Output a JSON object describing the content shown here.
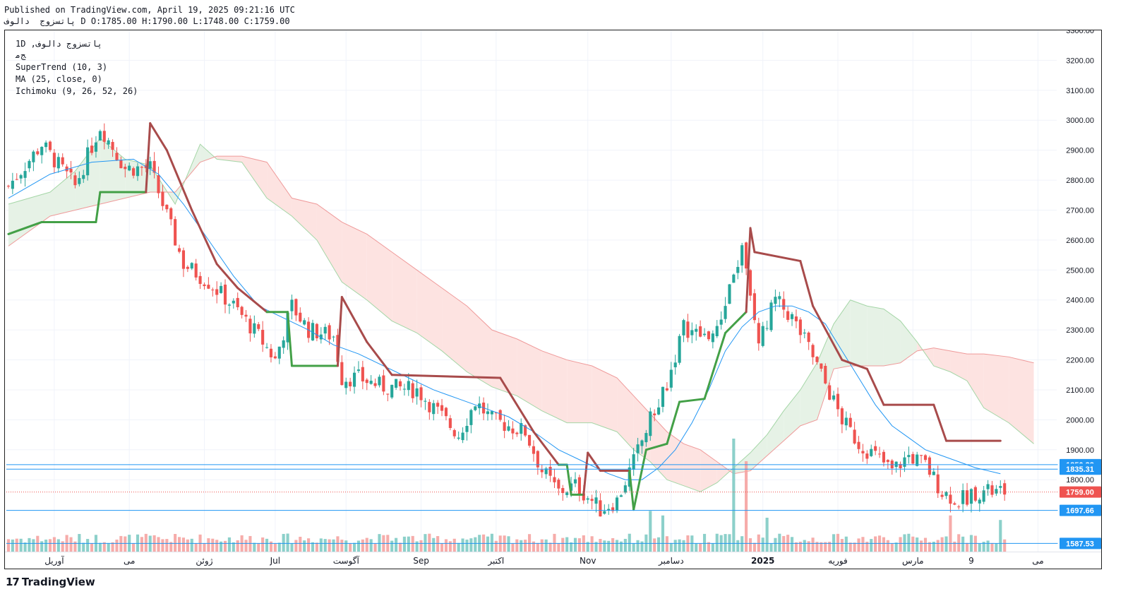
{
  "header": {
    "published": "Published on TradingView.com, April 19, 2025 09:21:16 UTC",
    "ohlc": "پاتسزوج  دالوف D O:1785.00 H:1790.00 L:1748.00 C:1759.00"
  },
  "legend": {
    "symbol": "1D ,پاتسزوج دالوف",
    "sub": "ﺞﻣ",
    "supertrend": "SuperTrend (10, 3)",
    "ma": "MA (25, close, 0)",
    "ichimoku": "Ichimoku (9, 26, 52, 26)"
  },
  "footer": {
    "brand": "TradingView",
    "logo_icon": "tv-logo-icon"
  },
  "colors": {
    "up": "#26a69a",
    "down": "#ef5350",
    "supertrend_up": "#43a047",
    "supertrend_down": "#a84b4b",
    "ma": "#2196f3",
    "cloud_bull": "#e6f2e6",
    "cloud_bear": "#fde3e1",
    "hline": "#2196f3",
    "last_price": "#ef5350"
  },
  "chart_data": {
    "type": "candlestick",
    "interval": "1D",
    "ylim": [
      1560,
      3300
    ],
    "y_ticks": [
      3300,
      3200,
      3100,
      3000,
      2900,
      2800,
      2700,
      2600,
      2500,
      2400,
      2300,
      2200,
      2100,
      2000,
      1900,
      1800
    ],
    "y_tick_labels": [
      "3300.00",
      "3200.00",
      "3100.00",
      "3000.00",
      "2900.00",
      "2800.00",
      "2700.00",
      "2600.00",
      "2500.00",
      "2400.00",
      "2300.00",
      "2200.00",
      "2100.00",
      "2000.00",
      "1900.00",
      "1800.00"
    ],
    "x_labels": [
      {
        "label": "آوریل",
        "t": 11
      },
      {
        "label": "می",
        "t": 29
      },
      {
        "label": "ژوئن",
        "t": 47
      },
      {
        "label": "Jul",
        "t": 64
      },
      {
        "label": "آگوست",
        "t": 81
      },
      {
        "label": "Sep",
        "t": 99
      },
      {
        "label": "اکتبر",
        "t": 117
      },
      {
        "label": "Nov",
        "t": 139
      },
      {
        "label": "دسامبر",
        "t": 159
      },
      {
        "label": "2025",
        "t": 181
      },
      {
        "label": "فوریه",
        "t": 199
      },
      {
        "label": "مارس",
        "t": 217
      },
      {
        "label": "9",
        "t": 231
      },
      {
        "label": "می",
        "t": 247
      }
    ],
    "anchors": [
      [
        0,
        2780
      ],
      [
        8,
        2920
      ],
      [
        16,
        2780
      ],
      [
        22,
        2980
      ],
      [
        28,
        2840
      ],
      [
        34,
        2840
      ],
      [
        38,
        2680
      ],
      [
        42,
        2520
      ],
      [
        48,
        2460
      ],
      [
        54,
        2380
      ],
      [
        60,
        2280
      ],
      [
        64,
        2200
      ],
      [
        68,
        2380
      ],
      [
        72,
        2300
      ],
      [
        78,
        2280
      ],
      [
        80,
        2140
      ],
      [
        84,
        2140
      ],
      [
        90,
        2110
      ],
      [
        98,
        2100
      ],
      [
        104,
        2010
      ],
      [
        108,
        1950
      ],
      [
        112,
        2060
      ],
      [
        116,
        2000
      ],
      [
        124,
        1960
      ],
      [
        128,
        1830
      ],
      [
        132,
        1760
      ],
      [
        136,
        1780
      ],
      [
        140,
        1730
      ],
      [
        142,
        1700
      ],
      [
        146,
        1730
      ],
      [
        150,
        1860
      ],
      [
        154,
        2000
      ],
      [
        158,
        2120
      ],
      [
        162,
        2310
      ],
      [
        166,
        2280
      ],
      [
        170,
        2290
      ],
      [
        174,
        2500
      ],
      [
        176,
        2560
      ],
      [
        178,
        2400
      ],
      [
        180,
        2260
      ],
      [
        184,
        2400
      ],
      [
        188,
        2340
      ],
      [
        192,
        2240
      ],
      [
        196,
        2120
      ],
      [
        200,
        2000
      ],
      [
        204,
        1920
      ],
      [
        208,
        1880
      ],
      [
        212,
        1830
      ],
      [
        216,
        1880
      ],
      [
        220,
        1850
      ],
      [
        224,
        1760
      ],
      [
        228,
        1730
      ],
      [
        232,
        1760
      ],
      [
        236,
        1759
      ]
    ],
    "supertrend": [
      [
        0,
        2620,
        "up"
      ],
      [
        8,
        2660,
        "up"
      ],
      [
        21,
        2660,
        "up"
      ],
      [
        22,
        2760,
        "up"
      ],
      [
        33,
        2760,
        "up"
      ],
      [
        34,
        2990,
        "down"
      ],
      [
        38,
        2900,
        "down"
      ],
      [
        44,
        2700,
        "down"
      ],
      [
        50,
        2520,
        "down"
      ],
      [
        55,
        2440,
        "down"
      ],
      [
        62,
        2360,
        "down"
      ],
      [
        67,
        2360,
        "up"
      ],
      [
        68,
        2180,
        "up"
      ],
      [
        79,
        2180,
        "up"
      ],
      [
        80,
        2410,
        "down"
      ],
      [
        86,
        2260,
        "down"
      ],
      [
        92,
        2150,
        "down"
      ],
      [
        118,
        2140,
        "down"
      ],
      [
        126,
        1960,
        "down"
      ],
      [
        132,
        1850,
        "down"
      ],
      [
        134,
        1850,
        "up"
      ],
      [
        135,
        1750,
        "up"
      ],
      [
        138,
        1750,
        "up"
      ],
      [
        139,
        1890,
        "down"
      ],
      [
        142,
        1830,
        "down"
      ],
      [
        149,
        1830,
        "down"
      ],
      [
        150,
        1700,
        "up"
      ],
      [
        153,
        1900,
        "up"
      ],
      [
        158,
        1920,
        "up"
      ],
      [
        161,
        2060,
        "up"
      ],
      [
        167,
        2070,
        "up"
      ],
      [
        172,
        2290,
        "up"
      ],
      [
        177,
        2360,
        "up"
      ],
      [
        178,
        2640,
        "down"
      ],
      [
        179,
        2560,
        "down"
      ],
      [
        190,
        2530,
        "down"
      ],
      [
        193,
        2380,
        "down"
      ],
      [
        200,
        2200,
        "down"
      ],
      [
        206,
        2170,
        "down"
      ],
      [
        210,
        2050,
        "down"
      ],
      [
        222,
        2050,
        "down"
      ],
      [
        225,
        1930,
        "down"
      ],
      [
        238,
        1930,
        "down"
      ]
    ],
    "ma25": [
      [
        0,
        2740
      ],
      [
        10,
        2820
      ],
      [
        20,
        2860
      ],
      [
        30,
        2870
      ],
      [
        36,
        2820
      ],
      [
        42,
        2720
      ],
      [
        48,
        2600
      ],
      [
        54,
        2480
      ],
      [
        60,
        2380
      ],
      [
        66,
        2340
      ],
      [
        72,
        2300
      ],
      [
        78,
        2250
      ],
      [
        84,
        2220
      ],
      [
        90,
        2180
      ],
      [
        96,
        2140
      ],
      [
        102,
        2100
      ],
      [
        108,
        2070
      ],
      [
        114,
        2040
      ],
      [
        120,
        2010
      ],
      [
        126,
        1960
      ],
      [
        132,
        1900
      ],
      [
        138,
        1860
      ],
      [
        144,
        1820
      ],
      [
        148,
        1800
      ],
      [
        152,
        1800
      ],
      [
        156,
        1840
      ],
      [
        160,
        1900
      ],
      [
        164,
        1990
      ],
      [
        168,
        2100
      ],
      [
        172,
        2230
      ],
      [
        176,
        2310
      ],
      [
        180,
        2360
      ],
      [
        184,
        2380
      ],
      [
        188,
        2380
      ],
      [
        192,
        2360
      ],
      [
        196,
        2320
      ],
      [
        200,
        2230
      ],
      [
        204,
        2140
      ],
      [
        208,
        2050
      ],
      [
        212,
        1980
      ],
      [
        216,
        1940
      ],
      [
        220,
        1900
      ],
      [
        224,
        1880
      ],
      [
        228,
        1860
      ],
      [
        232,
        1840
      ],
      [
        238,
        1820
      ]
    ],
    "cloud": [
      [
        0,
        2720,
        2580
      ],
      [
        10,
        2760,
        2680
      ],
      [
        16,
        2830,
        2700
      ],
      [
        22,
        2940,
        2720
      ],
      [
        28,
        2870,
        2740
      ],
      [
        34,
        2850,
        2760
      ],
      [
        40,
        2720,
        2760
      ],
      [
        46,
        2920,
        2860
      ],
      [
        50,
        2870,
        2880
      ],
      [
        56,
        2860,
        2880
      ],
      [
        62,
        2740,
        2860
      ],
      [
        68,
        2680,
        2740
      ],
      [
        74,
        2600,
        2720
      ],
      [
        80,
        2460,
        2660
      ],
      [
        86,
        2400,
        2620
      ],
      [
        92,
        2330,
        2560
      ],
      [
        98,
        2290,
        2500
      ],
      [
        104,
        2230,
        2440
      ],
      [
        110,
        2160,
        2380
      ],
      [
        116,
        2110,
        2300
      ],
      [
        122,
        2080,
        2270
      ],
      [
        128,
        2030,
        2230
      ],
      [
        134,
        1990,
        2200
      ],
      [
        140,
        1990,
        2180
      ],
      [
        146,
        1960,
        2140
      ],
      [
        150,
        1900,
        2080
      ],
      [
        154,
        1860,
        2020
      ],
      [
        158,
        1800,
        1960
      ],
      [
        162,
        1780,
        1920
      ],
      [
        166,
        1760,
        1900
      ],
      [
        170,
        1790,
        1860
      ],
      [
        174,
        1840,
        1820
      ],
      [
        178,
        1890,
        1830
      ],
      [
        182,
        1950,
        1880
      ],
      [
        186,
        2030,
        1930
      ],
      [
        190,
        2100,
        1980
      ],
      [
        194,
        2190,
        2000
      ],
      [
        198,
        2320,
        2170
      ],
      [
        202,
        2400,
        2180
      ],
      [
        206,
        2380,
        2180
      ],
      [
        210,
        2370,
        2180
      ],
      [
        214,
        2330,
        2190
      ],
      [
        218,
        2260,
        2230
      ],
      [
        222,
        2180,
        2240
      ],
      [
        226,
        2160,
        2230
      ],
      [
        230,
        2130,
        2220
      ],
      [
        234,
        2040,
        2220
      ],
      [
        240,
        1990,
        2210
      ],
      [
        246,
        1920,
        2190
      ]
    ],
    "volume_max": 5.0,
    "volume_spikes": [
      [
        174,
        5.0
      ],
      [
        177,
        4.0
      ],
      [
        182,
        1.5
      ],
      [
        154,
        1.8
      ],
      [
        157,
        1.6
      ],
      [
        226,
        1.6
      ],
      [
        238,
        1.4
      ]
    ],
    "hlines": [
      {
        "value": 1850.33,
        "label": "1850.33"
      },
      {
        "value": 1835.31,
        "label": "1835.31"
      },
      {
        "value": 1697.66,
        "label": "1697.66"
      },
      {
        "value": 1587.53,
        "label": "1587.53"
      }
    ],
    "last_price": {
      "value": 1759.0,
      "label": "1759.00"
    },
    "bars_visible": 240,
    "future_bars": 12
  }
}
